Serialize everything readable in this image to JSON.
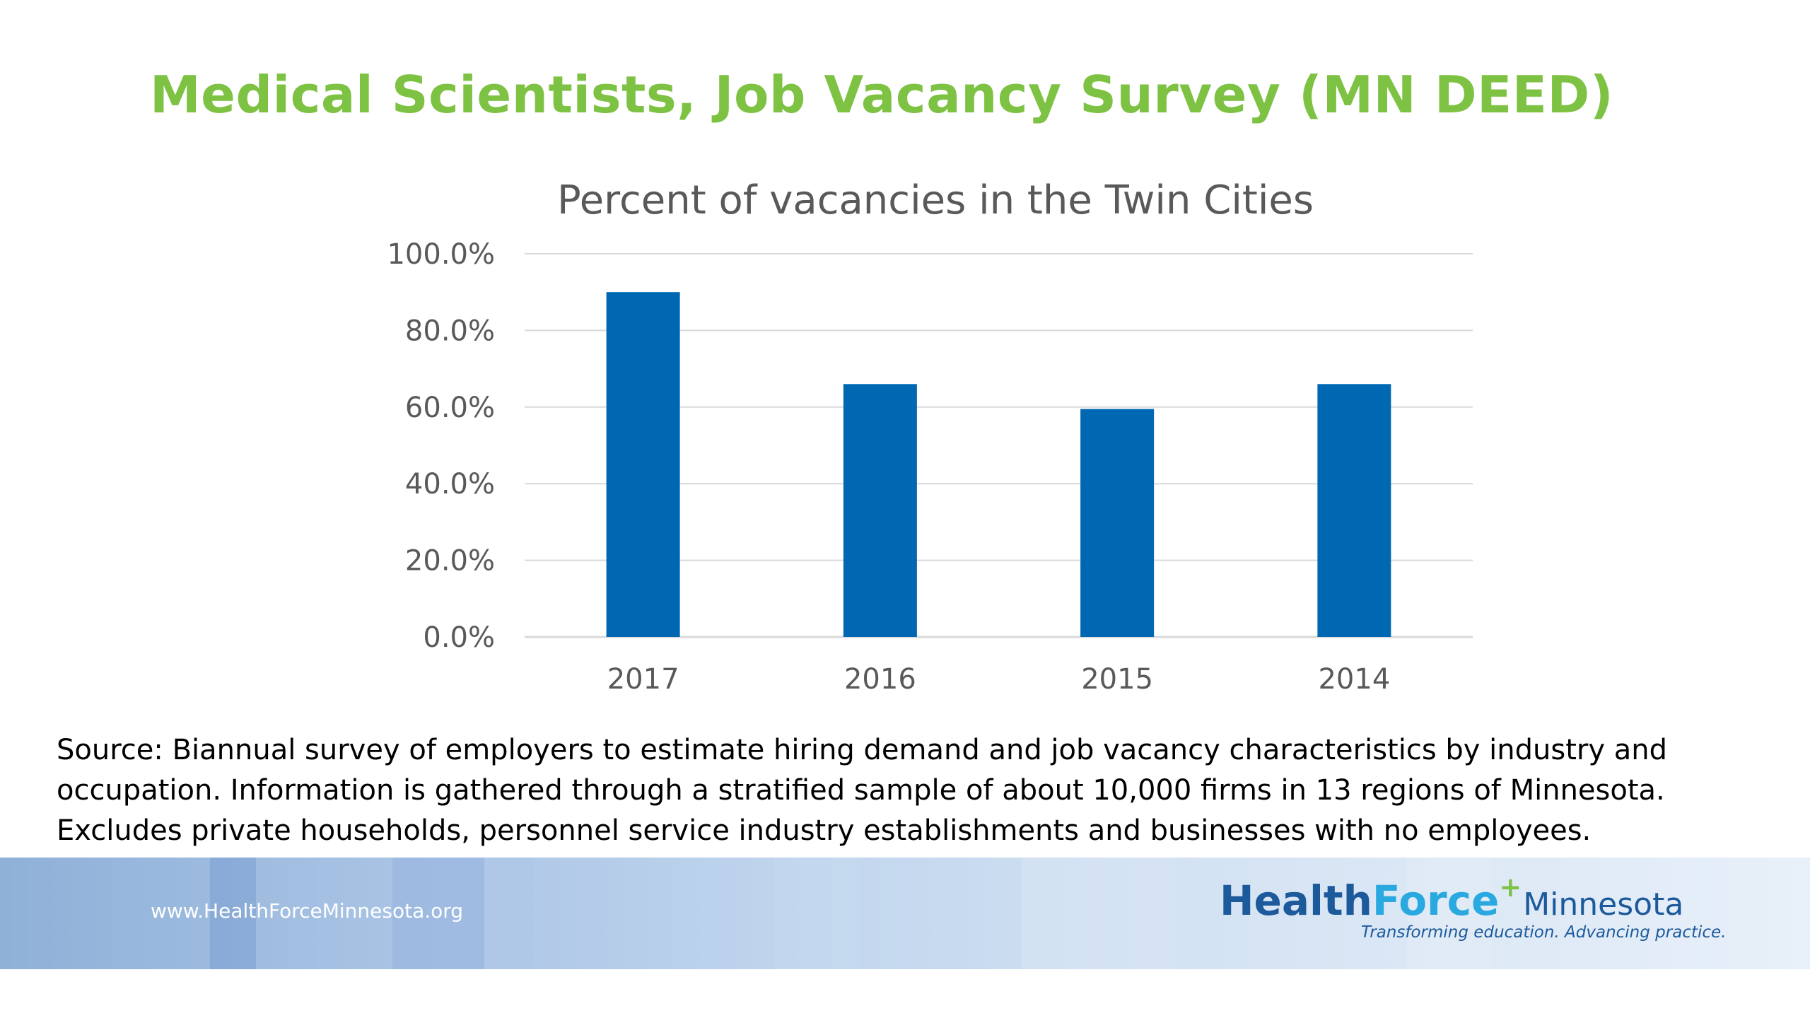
{
  "slide": {
    "title": "Medical Scientists, Job Vacancy Survey (MN DEED)",
    "source_note": "Source:  Biannual survey of employers to estimate hiring demand and job vacancy characteristics by industry and occupation.  Information is gathered through a stratified sample of about 10,000 firms in 13 regions of Minnesota. Excludes private households, personnel service industry establishments and businesses with no employees."
  },
  "footer": {
    "url": "www.HealthForceMinnesota.org",
    "logo_health": "Health",
    "logo_force": "Force",
    "logo_plus": "+",
    "logo_minnesota": "Minnesota",
    "tagline": "Transforming education. Advancing practice."
  },
  "colors": {
    "title": "#7dc242",
    "bar": "#0068b3",
    "grid": "#d9d9d9",
    "axis_text": "#595959"
  },
  "chart_data": {
    "type": "bar",
    "title": "Percent of vacancies in the Twin Cities",
    "categories": [
      "2017",
      "2016",
      "2015",
      "2014"
    ],
    "values": [
      90.0,
      66.0,
      59.5,
      66.0
    ],
    "ylim": [
      0,
      100
    ],
    "yticks": [
      "0.0%",
      "20.0%",
      "40.0%",
      "60.0%",
      "80.0%",
      "100.0%"
    ],
    "xlabel": "",
    "ylabel": "",
    "grid": true,
    "legend": "none"
  }
}
